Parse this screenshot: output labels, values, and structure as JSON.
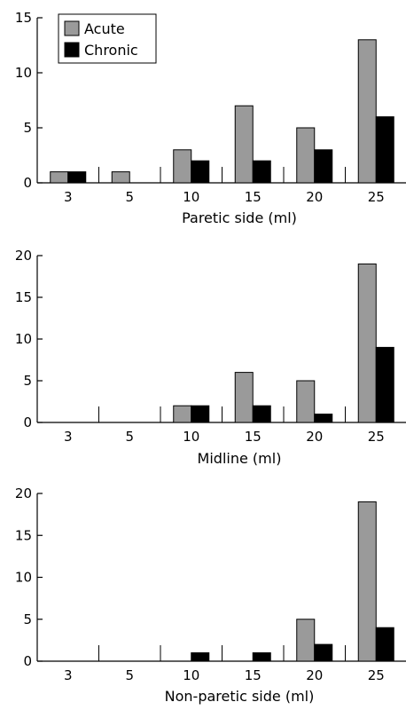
{
  "chart_data": [
    {
      "type": "bar",
      "xlabel": "Paretic side (ml)",
      "ylabel": "",
      "categories": [
        "3",
        "5",
        "10",
        "15",
        "20",
        "25"
      ],
      "ylim": [
        0,
        15
      ],
      "yticks": [
        0,
        5,
        10,
        15
      ],
      "legend": "top-left",
      "series": [
        {
          "name": "Acute",
          "values": [
            1,
            1,
            3,
            7,
            5,
            13
          ]
        },
        {
          "name": "Chronic",
          "values": [
            1,
            0,
            2,
            2,
            3,
            6
          ]
        }
      ]
    },
    {
      "type": "bar",
      "xlabel": "Midline (ml)",
      "ylabel": "",
      "categories": [
        "3",
        "5",
        "10",
        "15",
        "20",
        "25"
      ],
      "ylim": [
        0,
        20
      ],
      "yticks": [
        0,
        5,
        10,
        15,
        20
      ],
      "series": [
        {
          "name": "Acute",
          "values": [
            0,
            0,
            2,
            6,
            5,
            19
          ]
        },
        {
          "name": "Chronic",
          "values": [
            0,
            0,
            2,
            2,
            1,
            9
          ]
        }
      ]
    },
    {
      "type": "bar",
      "xlabel": "Non-paretic side (ml)",
      "ylabel": "",
      "categories": [
        "3",
        "5",
        "10",
        "15",
        "20",
        "25"
      ],
      "ylim": [
        0,
        20
      ],
      "yticks": [
        0,
        5,
        10,
        15,
        20
      ],
      "series": [
        {
          "name": "Acute",
          "values": [
            0,
            0,
            0,
            0,
            5,
            19
          ]
        },
        {
          "name": "Chronic",
          "values": [
            0,
            0,
            1,
            1,
            2,
            4
          ]
        }
      ]
    }
  ],
  "colors": {
    "acute": "#9a9a9a",
    "chronic": "#000000",
    "axis": "#000000"
  }
}
